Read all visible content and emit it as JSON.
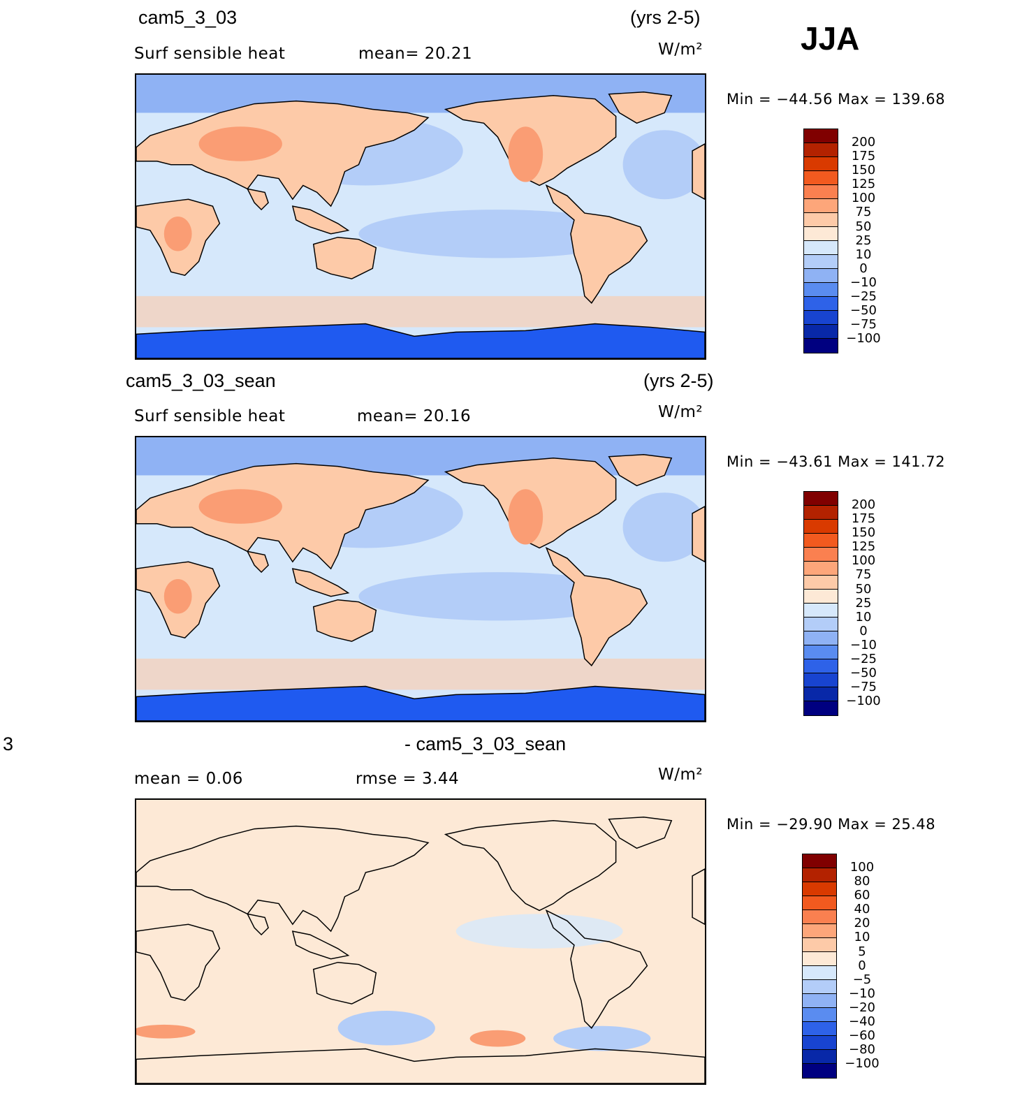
{
  "season": "JJA",
  "units": "W/m²",
  "panels": [
    {
      "case_title": "cam5_3_03",
      "years": "(yrs 2-5)",
      "left_text": "Surf  sensible  heat",
      "stat_text": "mean=   20.21",
      "minmax_text": "Min  =  −44.56  Max  =  139.68",
      "map_kind": "field",
      "levels": [
        "200",
        "175",
        "150",
        "125",
        "100",
        "75",
        "50",
        "25",
        "10",
        "0",
        "−10",
        "−25",
        "−50",
        "−75",
        "−100"
      ]
    },
    {
      "case_title": "cam5_3_03_sean",
      "years": "(yrs 2-5)",
      "left_text": "Surf  sensible  heat",
      "stat_text": "mean=   20.16",
      "minmax_text": "Min  =  −43.61  Max  =  141.72",
      "map_kind": "field",
      "levels": [
        "200",
        "175",
        "150",
        "125",
        "100",
        "75",
        "50",
        "25",
        "10",
        "0",
        "−10",
        "−25",
        "−50",
        "−75",
        "−100"
      ]
    },
    {
      "case_title": "- cam5_3_03_sean",
      "case_prefix": "3",
      "left_text": "mean  =     0.06",
      "stat_text": "rmse  =     3.44",
      "minmax_text": "Min  =  −29.90  Max  =    25.48",
      "map_kind": "diff",
      "levels": [
        "100",
        "80",
        "60",
        "40",
        "20",
        "10",
        "5",
        "0",
        "−5",
        "−10",
        "−20",
        "−40",
        "−60",
        "−80",
        "−100"
      ]
    }
  ],
  "colorbar_colors": [
    "#800000",
    "#b32200",
    "#d93a00",
    "#f25a1f",
    "#fa8050",
    "#fda67a",
    "#fdcaa8",
    "#fde9d6",
    "#d6e8fb",
    "#b3cdf8",
    "#8fb2f4",
    "#5a8cf0",
    "#2e62e8",
    "#1844d0",
    "#0828a8",
    "#000080"
  ],
  "map_colors": {
    "ocean_light": "#d6e8fb",
    "ocean_mid": "#b3cdf8",
    "ocean_blue": "#8fb2f4",
    "ice": "#1f5af0",
    "land_warm": "#fdcaa8",
    "land_hot": "#fa9d74",
    "diff_bg": "#fde9d6",
    "diff_blue": "#b3cdf8",
    "coast": "#000000"
  }
}
